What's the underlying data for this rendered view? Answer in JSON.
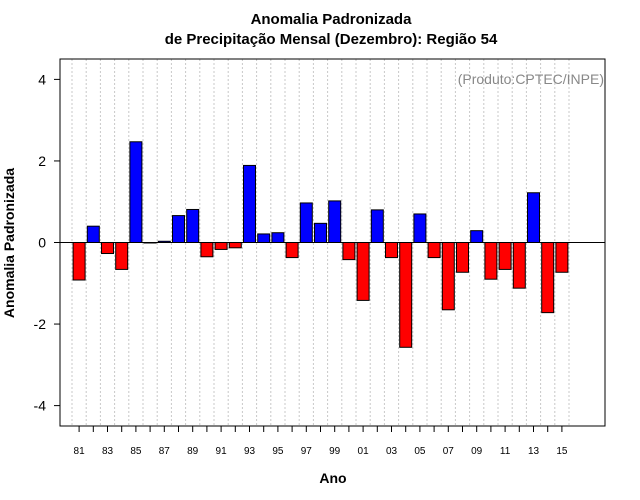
{
  "chart_data": {
    "type": "bar",
    "title": "Anomalia Padronizada",
    "subtitle": "de Precipitação Mensal (Dezembro): Região 54",
    "xlabel": "Ano",
    "ylabel": "Anomalia Padronizada",
    "credit": "(Produto:CPTEC/INPE)",
    "ylim": [
      -4.5,
      4.5
    ],
    "yticks": [
      -4,
      -2,
      0,
      2,
      4
    ],
    "ytick_labels": [
      "-4",
      "-2",
      "0",
      "2",
      "4"
    ],
    "categories": [
      "81",
      "82",
      "83",
      "84",
      "85",
      "86",
      "87",
      "88",
      "89",
      "90",
      "91",
      "92",
      "93",
      "94",
      "95",
      "96",
      "97",
      "98",
      "99",
      "00",
      "01",
      "02",
      "03",
      "04",
      "05",
      "06",
      "07",
      "08",
      "09",
      "10",
      "11",
      "12",
      "13",
      "14",
      "15"
    ],
    "xtick_labels": [
      "81",
      "83",
      "85",
      "87",
      "89",
      "91",
      "93",
      "95",
      "97",
      "99",
      "01",
      "03",
      "05",
      "07",
      "09",
      "11",
      "13",
      "15"
    ],
    "values": [
      -0.92,
      0.4,
      -0.27,
      -0.66,
      2.47,
      0.0,
      0.03,
      0.66,
      0.81,
      -0.35,
      -0.17,
      -0.13,
      1.89,
      0.21,
      0.24,
      -0.37,
      0.97,
      0.47,
      1.02,
      -0.42,
      -1.42,
      0.8,
      -0.37,
      -2.57,
      0.7,
      -0.37,
      -1.65,
      -0.73,
      0.29,
      -0.9,
      -0.66,
      -1.12,
      1.22,
      -1.72,
      -0.73
    ],
    "grid": true,
    "positive_color": "#0000ff",
    "negative_color": "#ff0000"
  }
}
